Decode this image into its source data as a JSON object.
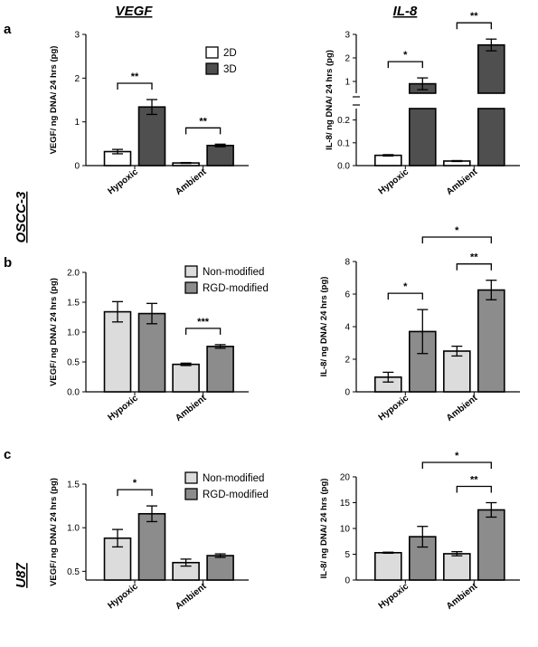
{
  "labels": {
    "panel_a": "a",
    "panel_b": "b",
    "panel_c": "c",
    "col_vegf": "VEGF",
    "col_il8": "IL-8",
    "row_oscc": "OSCC-3",
    "row_u87": "U87"
  },
  "colors": {
    "white": "#ffffff",
    "dark": "#4f4f4f",
    "light": "#dcdcdc",
    "mid": "#8c8c8c"
  },
  "chart_data": [
    {
      "id": "a-vegf",
      "type": "bar",
      "categories": [
        "Hypoxic",
        "Ambient"
      ],
      "series": [
        {
          "name": "2D",
          "values": [
            0.32,
            0.06
          ],
          "errors": [
            0.05,
            0.01
          ],
          "color": "white"
        },
        {
          "name": "3D",
          "values": [
            1.34,
            0.46
          ],
          "errors": [
            0.17,
            0.03
          ],
          "color": "dark"
        }
      ],
      "ylabel": "VEGF/ ng DNA/ 24 hrs (pg)",
      "ylim": [
        0,
        3
      ],
      "ticks": [
        0,
        1,
        2,
        3
      ],
      "legend": "top-right",
      "significance": [
        {
          "category": "Hypoxic",
          "text": "**"
        },
        {
          "category": "Ambient",
          "text": "**"
        }
      ]
    },
    {
      "id": "a-il8",
      "type": "bar",
      "broken_axis": true,
      "categories": [
        "Hypoxic",
        "Ambient"
      ],
      "series": [
        {
          "name": "2D",
          "values": [
            0.045,
            0.02
          ],
          "errors": [
            0.003,
            0.002
          ],
          "color": "white"
        },
        {
          "name": "3D",
          "values": [
            0.9,
            2.55
          ],
          "errors": [
            0.25,
            0.25
          ],
          "color": "dark"
        }
      ],
      "ylabel": "IL-8/ ng DNA/ 24 hrs (pg)",
      "ticks_lower": [
        "0.0",
        "0.1",
        "0.2"
      ],
      "ticks_upper": [
        "1",
        "2",
        "3"
      ],
      "significance": [
        {
          "category": "Hypoxic",
          "text": "*"
        },
        {
          "category": "Ambient",
          "text": "**"
        }
      ]
    },
    {
      "id": "b-vegf",
      "type": "bar",
      "categories": [
        "Hypoxic",
        "Ambient"
      ],
      "series": [
        {
          "name": "Non-modified",
          "values": [
            1.34,
            0.46
          ],
          "errors": [
            0.17,
            0.02
          ],
          "color": "light"
        },
        {
          "name": "RGD-modified",
          "values": [
            1.31,
            0.76
          ],
          "errors": [
            0.17,
            0.03
          ],
          "color": "mid"
        }
      ],
      "ylabel": "VEGF/ ng DNA/ 24 hrs (pg)",
      "ylim": [
        0,
        2.0
      ],
      "ticks": [
        "0.0",
        "0.5",
        "1.0",
        "1.5",
        "2.0"
      ],
      "legend": "top-right",
      "significance": [
        {
          "category": "Ambient",
          "text": "***"
        }
      ]
    },
    {
      "id": "b-il8",
      "type": "bar",
      "categories": [
        "Hypoxic",
        "Ambient"
      ],
      "series": [
        {
          "name": "Non-modified",
          "values": [
            0.9,
            2.5
          ],
          "errors": [
            0.3,
            0.3
          ],
          "color": "light"
        },
        {
          "name": "RGD-modified",
          "values": [
            3.7,
            6.25
          ],
          "errors": [
            1.35,
            0.6
          ],
          "color": "mid"
        }
      ],
      "ylabel": "IL-8/ ng DNA/ 24 hrs (pg)",
      "ylim": [
        0,
        8
      ],
      "ticks": [
        "0",
        "2",
        "4",
        "6",
        "8"
      ],
      "significance": [
        {
          "category": "Hypoxic",
          "text": "*"
        },
        {
          "category": "Ambient",
          "text": "**"
        },
        {
          "between": "RGD",
          "text": "*"
        }
      ]
    },
    {
      "id": "c-vegf",
      "type": "bar",
      "categories": [
        "Hypoxic",
        "Ambient"
      ],
      "series": [
        {
          "name": "Non-modified",
          "values": [
            0.88,
            0.6
          ],
          "errors": [
            0.1,
            0.04
          ],
          "color": "light"
        },
        {
          "name": "RGD-modified",
          "values": [
            1.16,
            0.68
          ],
          "errors": [
            0.09,
            0.02
          ],
          "color": "mid"
        }
      ],
      "ylabel": "VEGF/ ng DNA/ 24 hrs (pg)",
      "ylim": [
        0.4,
        1.5
      ],
      "ticks": [
        "0.5",
        "1.0",
        "1.5"
      ],
      "legend": "top-right",
      "significance": [
        {
          "category": "Hypoxic",
          "text": "*"
        }
      ]
    },
    {
      "id": "c-il8",
      "type": "bar",
      "categories": [
        "Hypoxic",
        "Ambient"
      ],
      "series": [
        {
          "name": "Non-modified",
          "values": [
            5.3,
            5.1
          ],
          "errors": [
            0.1,
            0.4
          ],
          "color": "light"
        },
        {
          "name": "RGD-modified",
          "values": [
            8.4,
            13.6
          ],
          "errors": [
            2.0,
            1.4
          ],
          "color": "mid"
        }
      ],
      "ylabel": "IL-8/ ng DNA/ 24 hrs (pg)",
      "ylim": [
        0,
        20
      ],
      "ticks": [
        "0",
        "5",
        "10",
        "15",
        "20"
      ],
      "significance": [
        {
          "category": "Ambient",
          "text": "**"
        },
        {
          "between": "RGD",
          "text": "*"
        }
      ]
    }
  ]
}
